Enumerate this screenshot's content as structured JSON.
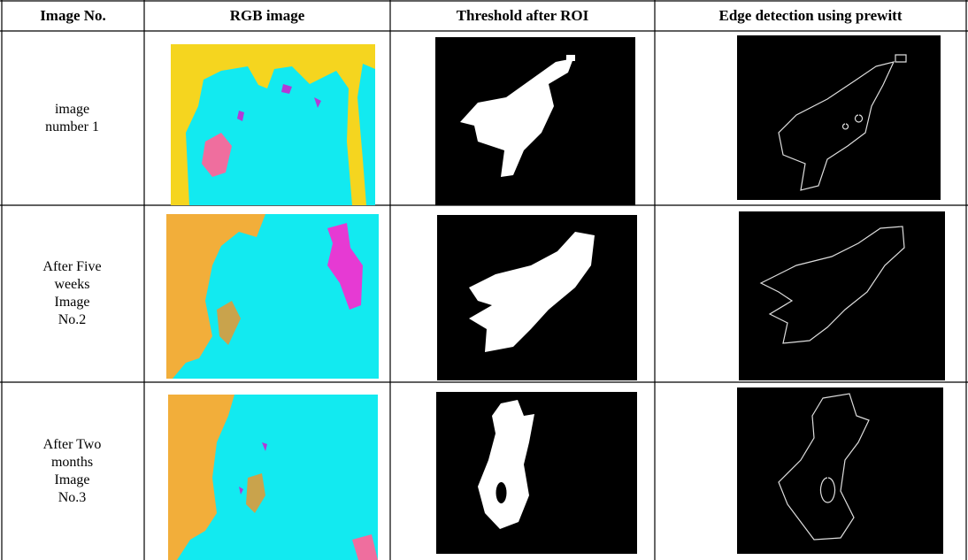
{
  "table": {
    "header": [
      "Image No.",
      "RGB image",
      "Threshold after ROI",
      "Edge detection using prewitt"
    ],
    "rows": [
      [
        "image number 1"
      ],
      [
        "After Five weeks Image No.2"
      ],
      [
        "After Two months Image No.3"
      ]
    ]
  }
}
